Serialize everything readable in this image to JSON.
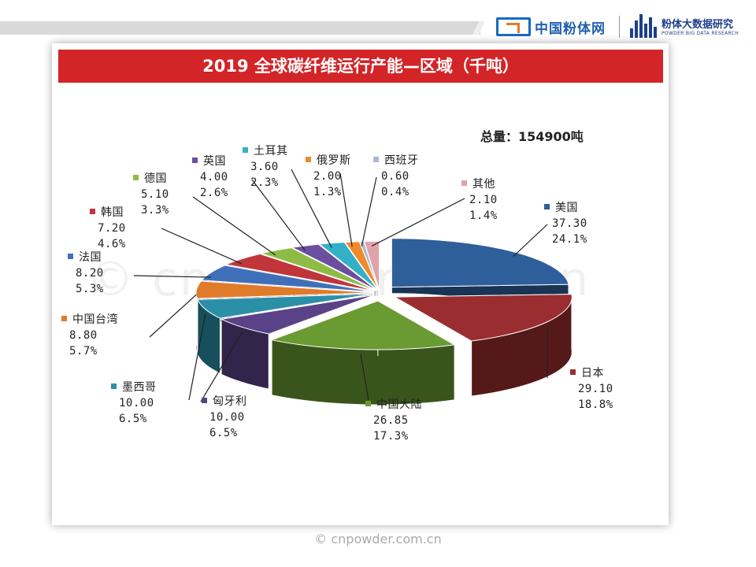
{
  "header": {
    "brand_left": "中国粉体网",
    "brand_right_cn": "粉体大数据研究",
    "brand_right_en": "POWDER BIG DATA RESEARCH"
  },
  "footer": {
    "copyright": "© cnpowder.com.cn"
  },
  "watermark": "© cnpowder.com.cn",
  "chart_data": {
    "type": "pie",
    "title": "2019 全球碳纤维运行产能—区域（千吨）",
    "annotation": "总量：154900吨",
    "slices": [
      {
        "label": "美国",
        "value": "37.30",
        "percent": "24.1%",
        "color": "#2e5f9a"
      },
      {
        "label": "日本",
        "value": "29.10",
        "percent": "18.8%",
        "color": "#9a2d30"
      },
      {
        "label": "中国大陆",
        "value": "26.85",
        "percent": "17.3%",
        "color": "#6a9a32"
      },
      {
        "label": "匈牙利",
        "value": "10.00",
        "percent": "6.5%",
        "color": "#5a4288"
      },
      {
        "label": "墨西哥",
        "value": "10.00",
        "percent": "6.5%",
        "color": "#2b8fa8"
      },
      {
        "label": "中国台湾",
        "value": "8.80",
        "percent": "5.7%",
        "color": "#e07b2a"
      },
      {
        "label": "法国",
        "value": "8.20",
        "percent": "5.3%",
        "color": "#3f6fb8"
      },
      {
        "label": "韩国",
        "value": "7.20",
        "percent": "4.6%",
        "color": "#c0353a"
      },
      {
        "label": "德国",
        "value": "5.10",
        "percent": "3.3%",
        "color": "#8dbb45"
      },
      {
        "label": "英国",
        "value": "4.00",
        "percent": "2.6%",
        "color": "#6c4ea0"
      },
      {
        "label": "土耳其",
        "value": "3.60",
        "percent": "2.3%",
        "color": "#33b0c8"
      },
      {
        "label": "俄罗斯",
        "value": "2.00",
        "percent": "1.3%",
        "color": "#f08a2c"
      },
      {
        "label": "西班牙",
        "value": "0.60",
        "percent": "0.4%",
        "color": "#a9b8d8"
      },
      {
        "label": "其他",
        "value": "2.10",
        "percent": "1.4%",
        "color": "#e0a3a8"
      }
    ]
  }
}
